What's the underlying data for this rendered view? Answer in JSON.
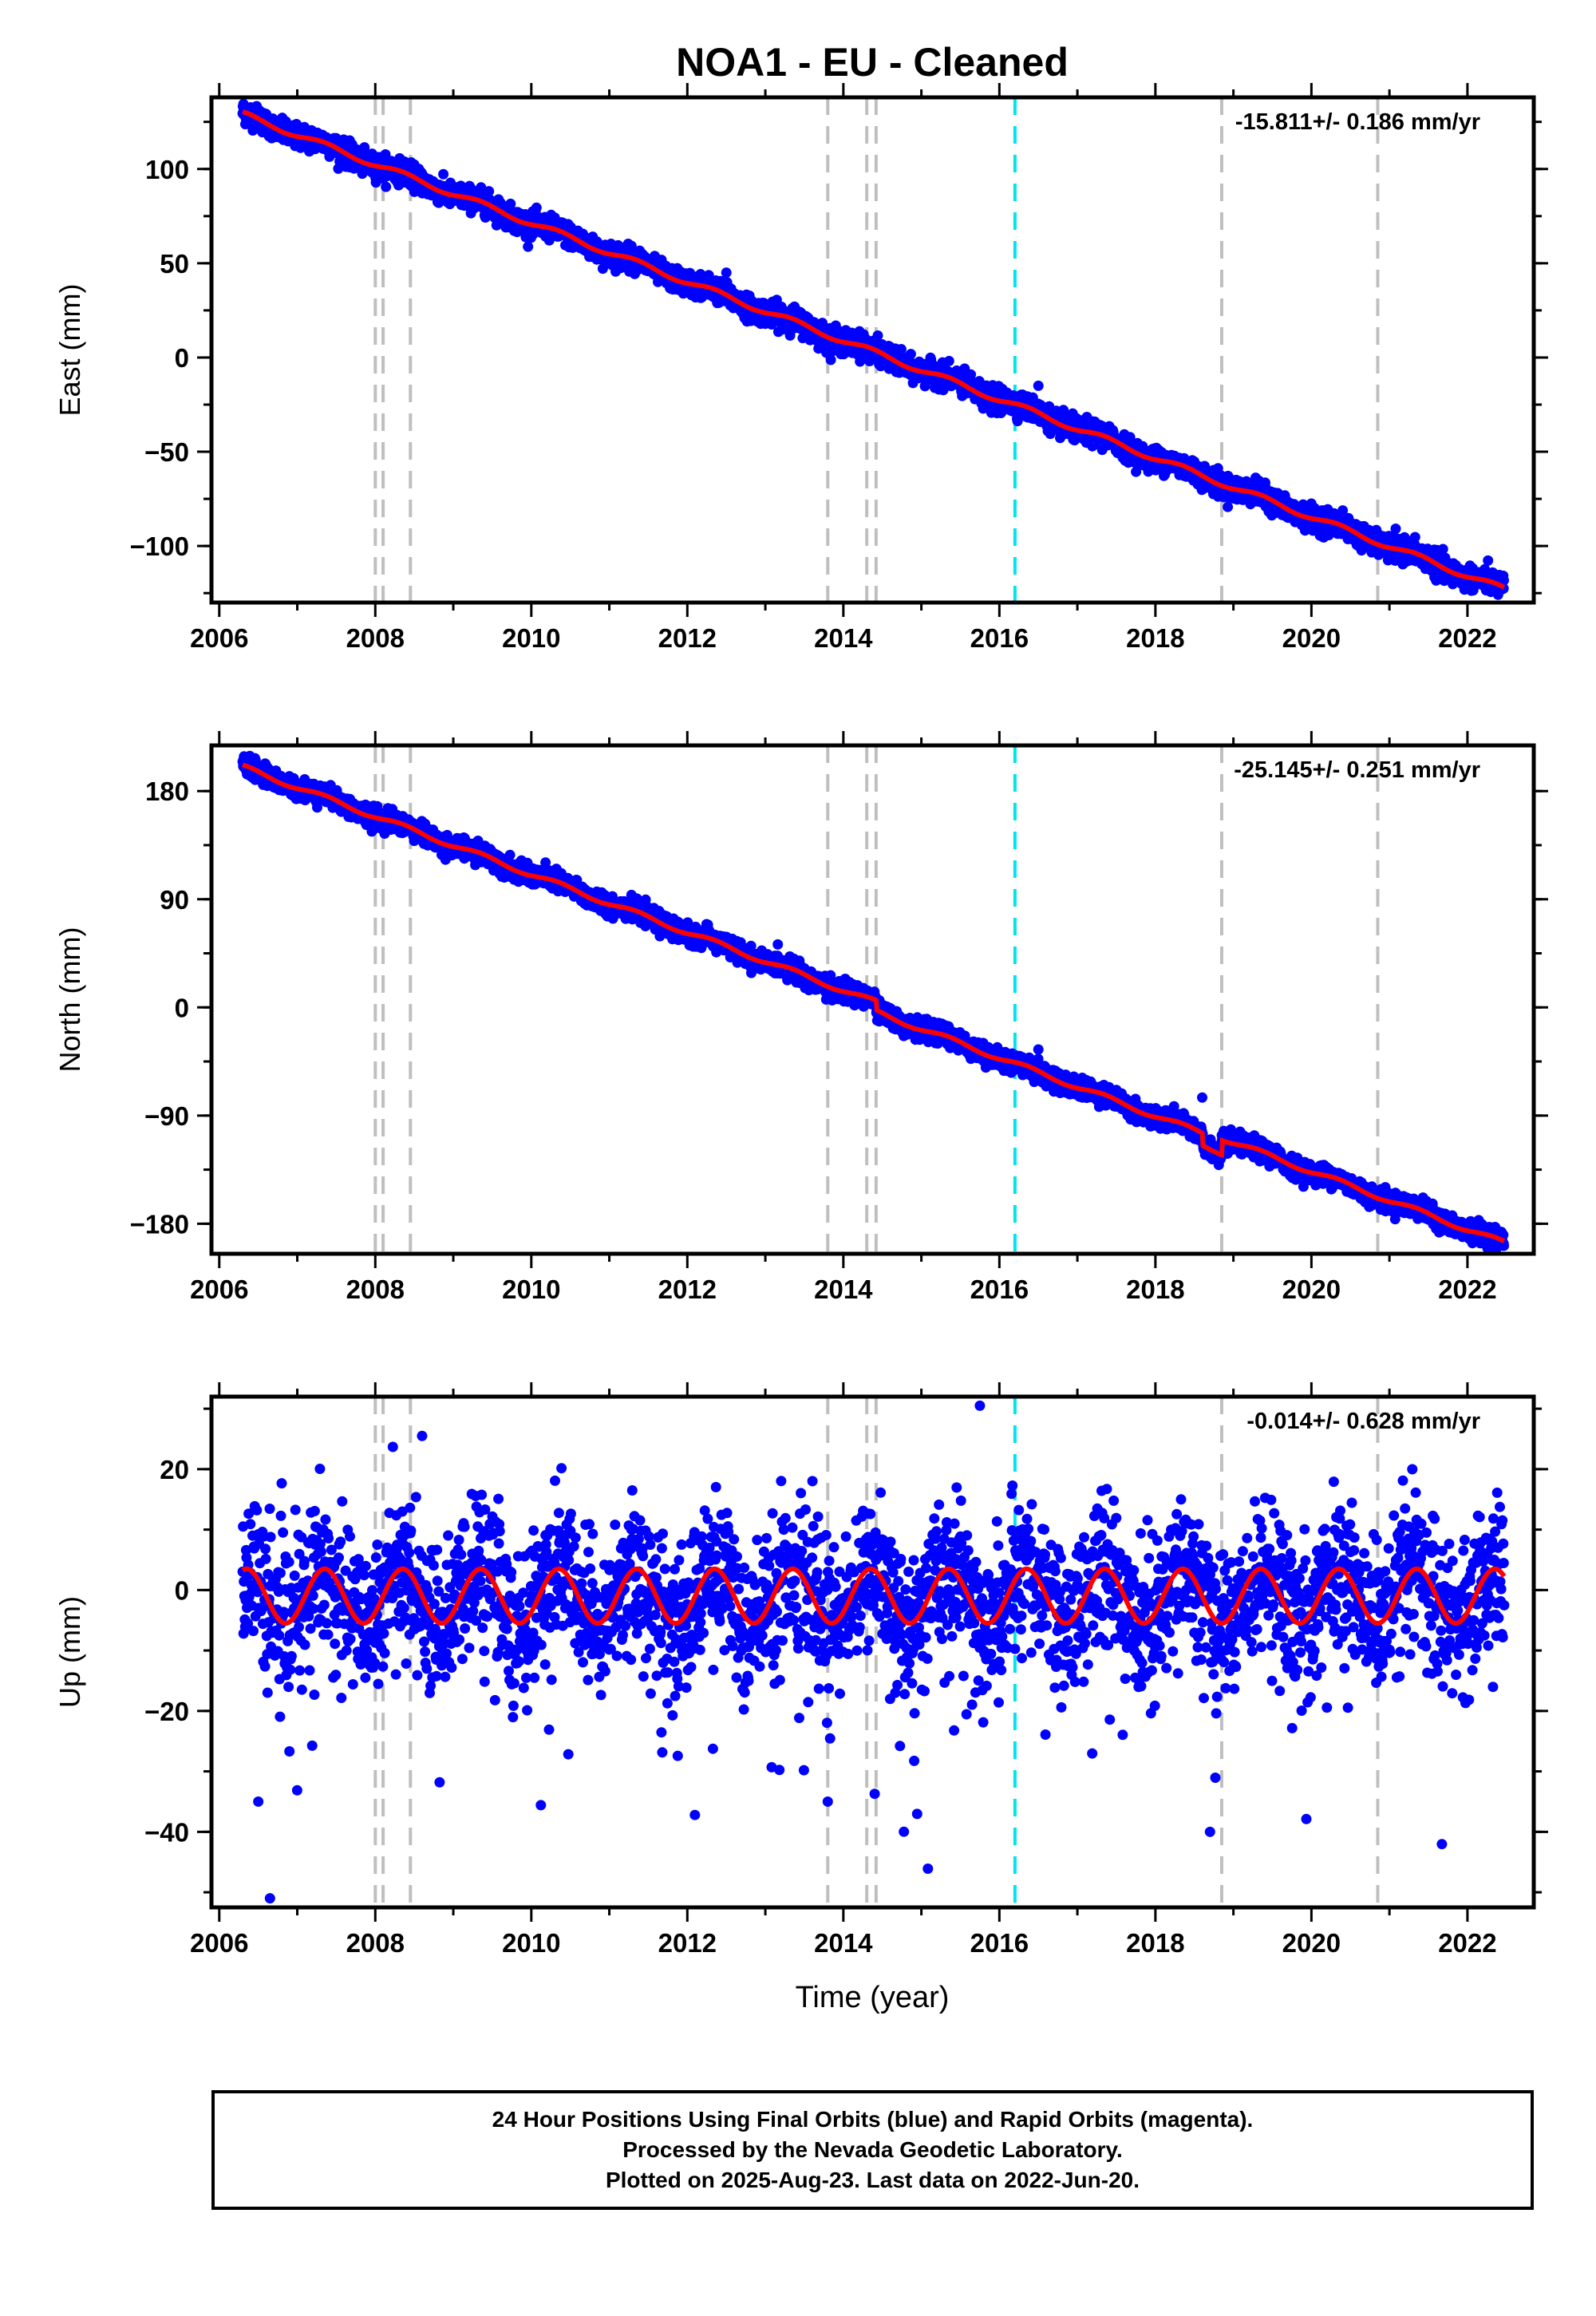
{
  "figure": {
    "title": "NOA1  - EU - Cleaned",
    "x_axis_label": "Time (year)",
    "x_ticks": [
      2006,
      2008,
      2010,
      2012,
      2014,
      2016,
      2018,
      2020,
      2022
    ],
    "x_range": [
      2005.9,
      2022.85
    ]
  },
  "colors": {
    "final_orbits": "#0000ff",
    "model_fit": "#ff0000",
    "event_line": "#bfbfbf",
    "cyan_line": "#00e5ee"
  },
  "event_lines_gray": [
    2008.0,
    2008.1,
    2008.45,
    2013.8,
    2014.3,
    2014.42,
    2018.85,
    2020.85
  ],
  "event_line_cyan": [
    2016.2
  ],
  "caption": {
    "line1": "24 Hour Positions Using Final Orbits (blue) and Rapid Orbits (magenta).",
    "line2": "Processed by the Nevada Geodetic Laboratory.",
    "line3": "Plotted on 2025-Aug-23. Last data on 2022-Jun-20."
  },
  "chart_data": [
    {
      "type": "scatter",
      "component": "East",
      "ylabel": "East (mm)",
      "rate_label": "-15.811+/- 0.186 mm/yr",
      "ylim": [
        -130,
        138
      ],
      "y_ticks": [
        100,
        50,
        0,
        -50,
        -100
      ],
      "time_range": [
        2006.3,
        2022.47
      ],
      "start_value": 129,
      "end_value": -123,
      "seasonal_amplitude": 1.5,
      "scatter": 3,
      "offsets": [],
      "outliers": [
        [
          2012.5,
          45
        ],
        [
          2016.5,
          -15
        ]
      ]
    },
    {
      "type": "scatter",
      "component": "North",
      "ylabel": "North (mm)",
      "rate_label": "-25.145+/- 0.251 mm/yr",
      "ylim": [
        -205,
        218
      ],
      "y_ticks": [
        180,
        90,
        0,
        -90,
        -180
      ],
      "time_range": [
        2006.3,
        2022.47
      ],
      "start_value": 200,
      "end_value": -190,
      "seasonal_amplitude": 2,
      "scatter": 4,
      "offsets": [
        [
          2014.42,
          -8
        ],
        [
          2018.6,
          -10
        ],
        [
          2018.85,
          12
        ]
      ],
      "outliers": [
        [
          2018.6,
          -75
        ],
        [
          2016.5,
          -35
        ]
      ]
    },
    {
      "type": "scatter",
      "component": "Up",
      "ylabel": "Up (mm)",
      "rate_label": "-0.014+/- 0.628 mm/yr",
      "ylim": [
        -52.5,
        32
      ],
      "y_ticks": [
        20,
        0,
        -20,
        -40
      ],
      "time_range": [
        2006.3,
        2022.47
      ],
      "start_value": -1,
      "end_value": -1,
      "seasonal_amplitude": 4.5,
      "scatter": 6,
      "offsets": [],
      "outliers": [
        [
          2006.65,
          -51
        ],
        [
          2015.75,
          30.5
        ],
        [
          2018.7,
          -40
        ],
        [
          2008.6,
          25.5
        ],
        [
          2013.8,
          -35
        ],
        [
          2006.5,
          -35
        ]
      ]
    }
  ]
}
